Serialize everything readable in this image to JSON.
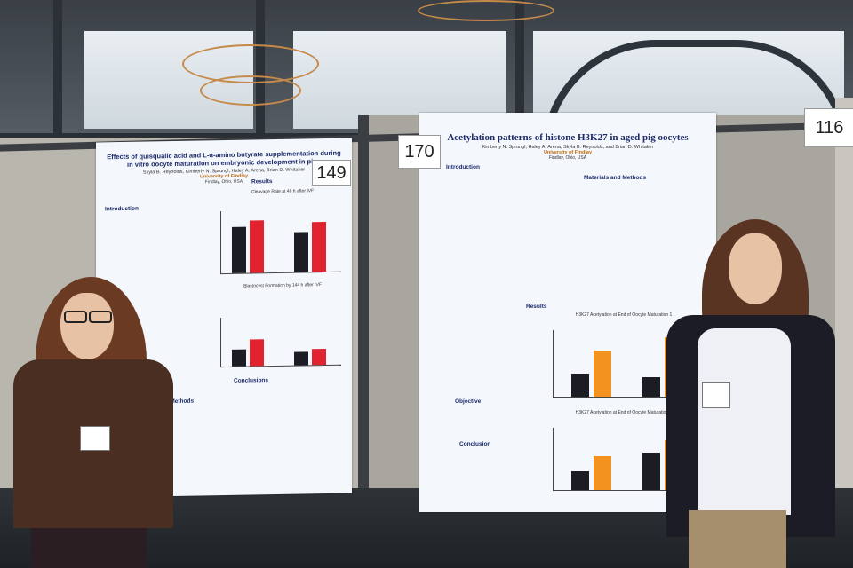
{
  "posters": [
    {
      "number": "149",
      "title": "Effects of quisqualic acid and L-α-amino butyrate supplementation during in vitro oocyte maturation on embryonic development in pigs",
      "authors": "Skyla B. Reynolds, Kimberly N. Sprungl, Haley A. Arena, Brian D. Whitaker",
      "institution": "University of Findlay",
      "place": "Findlay, Ohio, USA",
      "sections": {
        "introduction": "Introduction",
        "results": "Results",
        "conclusions": "Conclusions",
        "materials": "Materials and Methods"
      },
      "chart_titles": [
        "Cleavage Rate at 48 h after IVF",
        "Blastocyst Formation by 144 h after IVF"
      ],
      "colors": {
        "bar_dark": "#1c1c24",
        "bar_red": "#e0232e"
      }
    },
    {
      "number": "170",
      "title": "Acetylation patterns of histone H3K27 in aged pig oocytes",
      "authors": "Kimberly N. Sprungl, Haley A. Arena, Skyla B. Reynolds, and Brian D. Whitaker",
      "institution": "University of Findlay",
      "place": "Findlay, Ohio, USA",
      "sections": {
        "introduction": "Introduction",
        "materials": "Materials and Methods",
        "results": "Results",
        "objective": "Objective",
        "conclusion": "Conclusion"
      },
      "chart_titles": [
        "H3K27 Acetylation at End of Oocyte Maturation 1",
        "H3K27 Acetylation at End of Oocyte Maturation 2"
      ],
      "colors": {
        "bar_dark": "#1c1c24",
        "bar_orange": "#f3921f"
      }
    },
    {
      "number": "116"
    }
  ]
}
